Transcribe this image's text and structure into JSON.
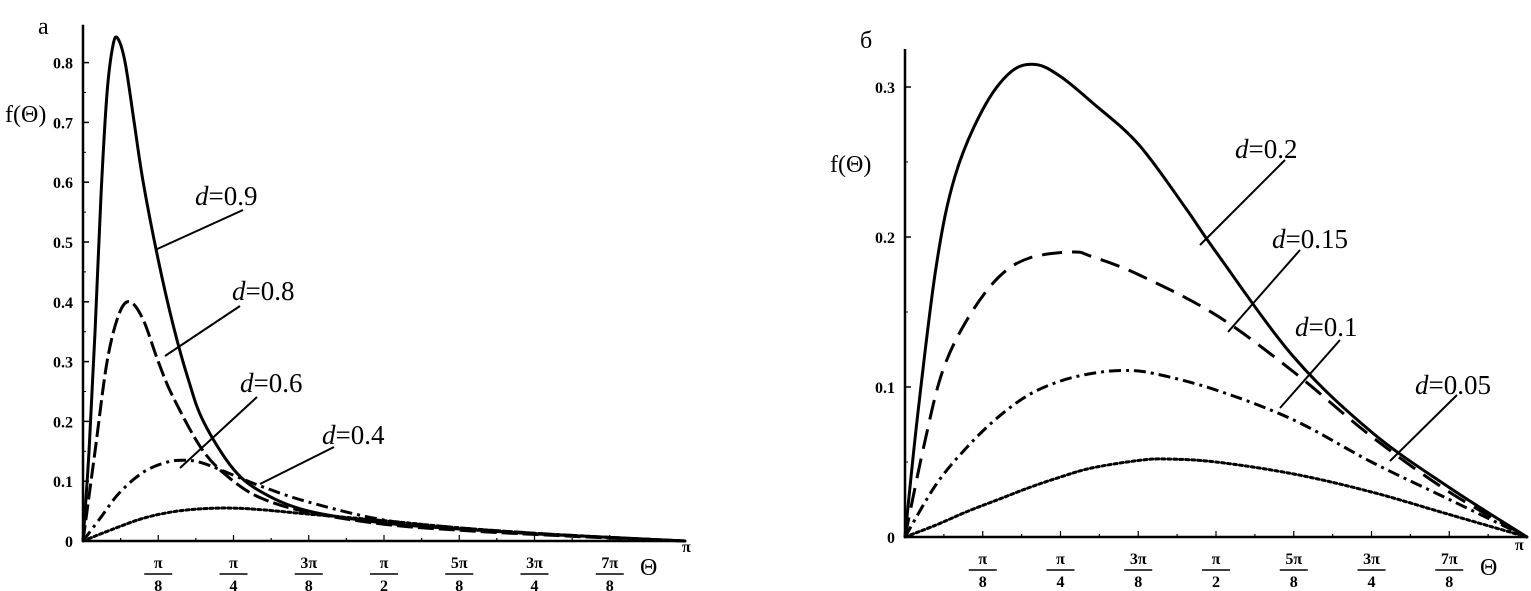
{
  "chart_data": [
    {
      "type": "line",
      "panel_label": "а",
      "ylabel": "f(Θ)",
      "xlabel": "Θ",
      "x_unit": "π",
      "xlim": [
        0,
        1
      ],
      "ylim": [
        0,
        0.85
      ],
      "y_ticks": [
        {
          "v": 0,
          "label": "0"
        },
        {
          "v": 0.1,
          "label": "0.1"
        },
        {
          "v": 0.2,
          "label": "0.2"
        },
        {
          "v": 0.3,
          "label": "0.3"
        },
        {
          "v": 0.4,
          "label": "0.4"
        },
        {
          "v": 0.5,
          "label": "0.5"
        },
        {
          "v": 0.6,
          "label": "0.6"
        },
        {
          "v": 0.7,
          "label": "0.7"
        },
        {
          "v": 0.8,
          "label": "0.8"
        }
      ],
      "x_ticks": [
        {
          "v": 0.125,
          "num": "π",
          "den": "8"
        },
        {
          "v": 0.25,
          "num": "π",
          "den": "4"
        },
        {
          "v": 0.375,
          "num": "3π",
          "den": "8"
        },
        {
          "v": 0.5,
          "num": "π",
          "den": "2"
        },
        {
          "v": 0.625,
          "num": "5π",
          "den": "8"
        },
        {
          "v": 0.75,
          "num": "3π",
          "den": "4"
        },
        {
          "v": 0.875,
          "num": "7π",
          "den": "8"
        }
      ],
      "x_end_label": "π",
      "series": [
        {
          "name": "d=0.9",
          "d_prefix": "d",
          "d_value": "=0.9",
          "style": "solid",
          "points": [
            [
              0,
              0
            ],
            [
              0.01,
              0.15
            ],
            [
              0.02,
              0.35
            ],
            [
              0.03,
              0.58
            ],
            [
              0.04,
              0.75
            ],
            [
              0.05,
              0.83
            ],
            [
              0.058,
              0.84
            ],
            [
              0.07,
              0.8
            ],
            [
              0.085,
              0.7
            ],
            [
              0.1,
              0.6
            ],
            [
              0.125,
              0.47
            ],
            [
              0.15,
              0.36
            ],
            [
              0.175,
              0.27
            ],
            [
              0.2,
              0.2
            ],
            [
              0.25,
              0.12
            ],
            [
              0.3,
              0.08
            ],
            [
              0.375,
              0.05
            ],
            [
              0.5,
              0.03
            ],
            [
              0.625,
              0.02
            ],
            [
              0.75,
              0.012
            ],
            [
              0.875,
              0.006
            ],
            [
              1,
              0
            ]
          ]
        },
        {
          "name": "d=0.8",
          "d_prefix": "d",
          "d_value": "=0.8",
          "style": "longdash",
          "points": [
            [
              0,
              0
            ],
            [
              0.02,
              0.15
            ],
            [
              0.04,
              0.3
            ],
            [
              0.06,
              0.38
            ],
            [
              0.078,
              0.4
            ],
            [
              0.1,
              0.37
            ],
            [
              0.125,
              0.3
            ],
            [
              0.15,
              0.24
            ],
            [
              0.2,
              0.15
            ],
            [
              0.25,
              0.1
            ],
            [
              0.3,
              0.07
            ],
            [
              0.375,
              0.048
            ],
            [
              0.5,
              0.028
            ],
            [
              0.625,
              0.018
            ],
            [
              0.75,
              0.011
            ],
            [
              0.875,
              0.005
            ],
            [
              1,
              0
            ]
          ]
        },
        {
          "name": "d=0.6",
          "d_prefix": "d",
          "d_value": "=0.6",
          "style": "dashdot",
          "points": [
            [
              0,
              0
            ],
            [
              0.03,
              0.04
            ],
            [
              0.06,
              0.08
            ],
            [
              0.1,
              0.115
            ],
            [
              0.14,
              0.132
            ],
            [
              0.17,
              0.135
            ],
            [
              0.2,
              0.13
            ],
            [
              0.25,
              0.11
            ],
            [
              0.3,
              0.09
            ],
            [
              0.375,
              0.065
            ],
            [
              0.5,
              0.035
            ],
            [
              0.625,
              0.022
            ],
            [
              0.75,
              0.013
            ],
            [
              0.875,
              0.006
            ],
            [
              1,
              0
            ]
          ]
        },
        {
          "name": "d=0.4",
          "d_prefix": "d",
          "d_value": "=0.4",
          "style": "dotted",
          "points": [
            [
              0,
              0
            ],
            [
              0.05,
              0.02
            ],
            [
              0.1,
              0.038
            ],
            [
              0.15,
              0.049
            ],
            [
              0.2,
              0.054
            ],
            [
              0.25,
              0.055
            ],
            [
              0.3,
              0.052
            ],
            [
              0.375,
              0.045
            ],
            [
              0.5,
              0.034
            ],
            [
              0.625,
              0.022
            ],
            [
              0.75,
              0.013
            ],
            [
              0.875,
              0.006
            ],
            [
              1,
              0
            ]
          ]
        }
      ]
    },
    {
      "type": "line",
      "panel_label": "б",
      "ylabel": "f(Θ)",
      "xlabel": "Θ",
      "x_unit": "π",
      "xlim": [
        0,
        1
      ],
      "ylim": [
        0,
        0.32
      ],
      "y_ticks": [
        {
          "v": 0,
          "label": "0"
        },
        {
          "v": 0.1,
          "label": "0.1"
        },
        {
          "v": 0.2,
          "label": "0.2"
        },
        {
          "v": 0.3,
          "label": "0.3"
        }
      ],
      "x_ticks": [
        {
          "v": 0.125,
          "num": "π",
          "den": "8"
        },
        {
          "v": 0.25,
          "num": "π",
          "den": "4"
        },
        {
          "v": 0.375,
          "num": "3π",
          "den": "8"
        },
        {
          "v": 0.5,
          "num": "π",
          "den": "2"
        },
        {
          "v": 0.625,
          "num": "5π",
          "den": "8"
        },
        {
          "v": 0.75,
          "num": "3π",
          "den": "4"
        },
        {
          "v": 0.875,
          "num": "7π",
          "den": "8"
        }
      ],
      "x_end_label": "π",
      "series": [
        {
          "name": "d=0.2",
          "d_prefix": "d",
          "d_value": "=0.2",
          "style": "solid",
          "points": [
            [
              0,
              0
            ],
            [
              0.02,
              0.08
            ],
            [
              0.05,
              0.18
            ],
            [
              0.08,
              0.24
            ],
            [
              0.125,
              0.285
            ],
            [
              0.17,
              0.31
            ],
            [
              0.21,
              0.315
            ],
            [
              0.25,
              0.307
            ],
            [
              0.3,
              0.29
            ],
            [
              0.375,
              0.262
            ],
            [
              0.45,
              0.22
            ],
            [
              0.5,
              0.19
            ],
            [
              0.625,
              0.12
            ],
            [
              0.75,
              0.07
            ],
            [
              0.875,
              0.033
            ],
            [
              1,
              0
            ]
          ]
        },
        {
          "name": "d=0.15",
          "d_prefix": "d",
          "d_value": "=0.15",
          "style": "dashed",
          "points": [
            [
              0,
              0
            ],
            [
              0.03,
              0.06
            ],
            [
              0.06,
              0.11
            ],
            [
              0.1,
              0.145
            ],
            [
              0.15,
              0.173
            ],
            [
              0.2,
              0.186
            ],
            [
              0.27,
              0.19
            ],
            [
              0.3,
              0.187
            ],
            [
              0.375,
              0.175
            ],
            [
              0.5,
              0.148
            ],
            [
              0.625,
              0.11
            ],
            [
              0.75,
              0.067
            ],
            [
              0.875,
              0.03
            ],
            [
              1,
              0
            ]
          ]
        },
        {
          "name": "d=0.1",
          "d_prefix": "d",
          "d_value": "=0.1",
          "style": "dashdot",
          "points": [
            [
              0,
              0
            ],
            [
              0.05,
              0.035
            ],
            [
              0.1,
              0.06
            ],
            [
              0.15,
              0.08
            ],
            [
              0.2,
              0.095
            ],
            [
              0.25,
              0.104
            ],
            [
              0.3,
              0.109
            ],
            [
              0.35,
              0.111
            ],
            [
              0.4,
              0.109
            ],
            [
              0.5,
              0.098
            ],
            [
              0.625,
              0.078
            ],
            [
              0.75,
              0.05
            ],
            [
              0.875,
              0.025
            ],
            [
              1,
              0
            ]
          ]
        },
        {
          "name": "d=0.05",
          "d_prefix": "d",
          "d_value": "=0.05",
          "style": "dotted",
          "points": [
            [
              0,
              0
            ],
            [
              0.05,
              0.008
            ],
            [
              0.1,
              0.017
            ],
            [
              0.15,
              0.025
            ],
            [
              0.2,
              0.033
            ],
            [
              0.25,
              0.04
            ],
            [
              0.3,
              0.046
            ],
            [
              0.375,
              0.051
            ],
            [
              0.42,
              0.052
            ],
            [
              0.5,
              0.05
            ],
            [
              0.625,
              0.042
            ],
            [
              0.75,
              0.03
            ],
            [
              0.875,
              0.015
            ],
            [
              1,
              0
            ]
          ]
        }
      ]
    }
  ]
}
